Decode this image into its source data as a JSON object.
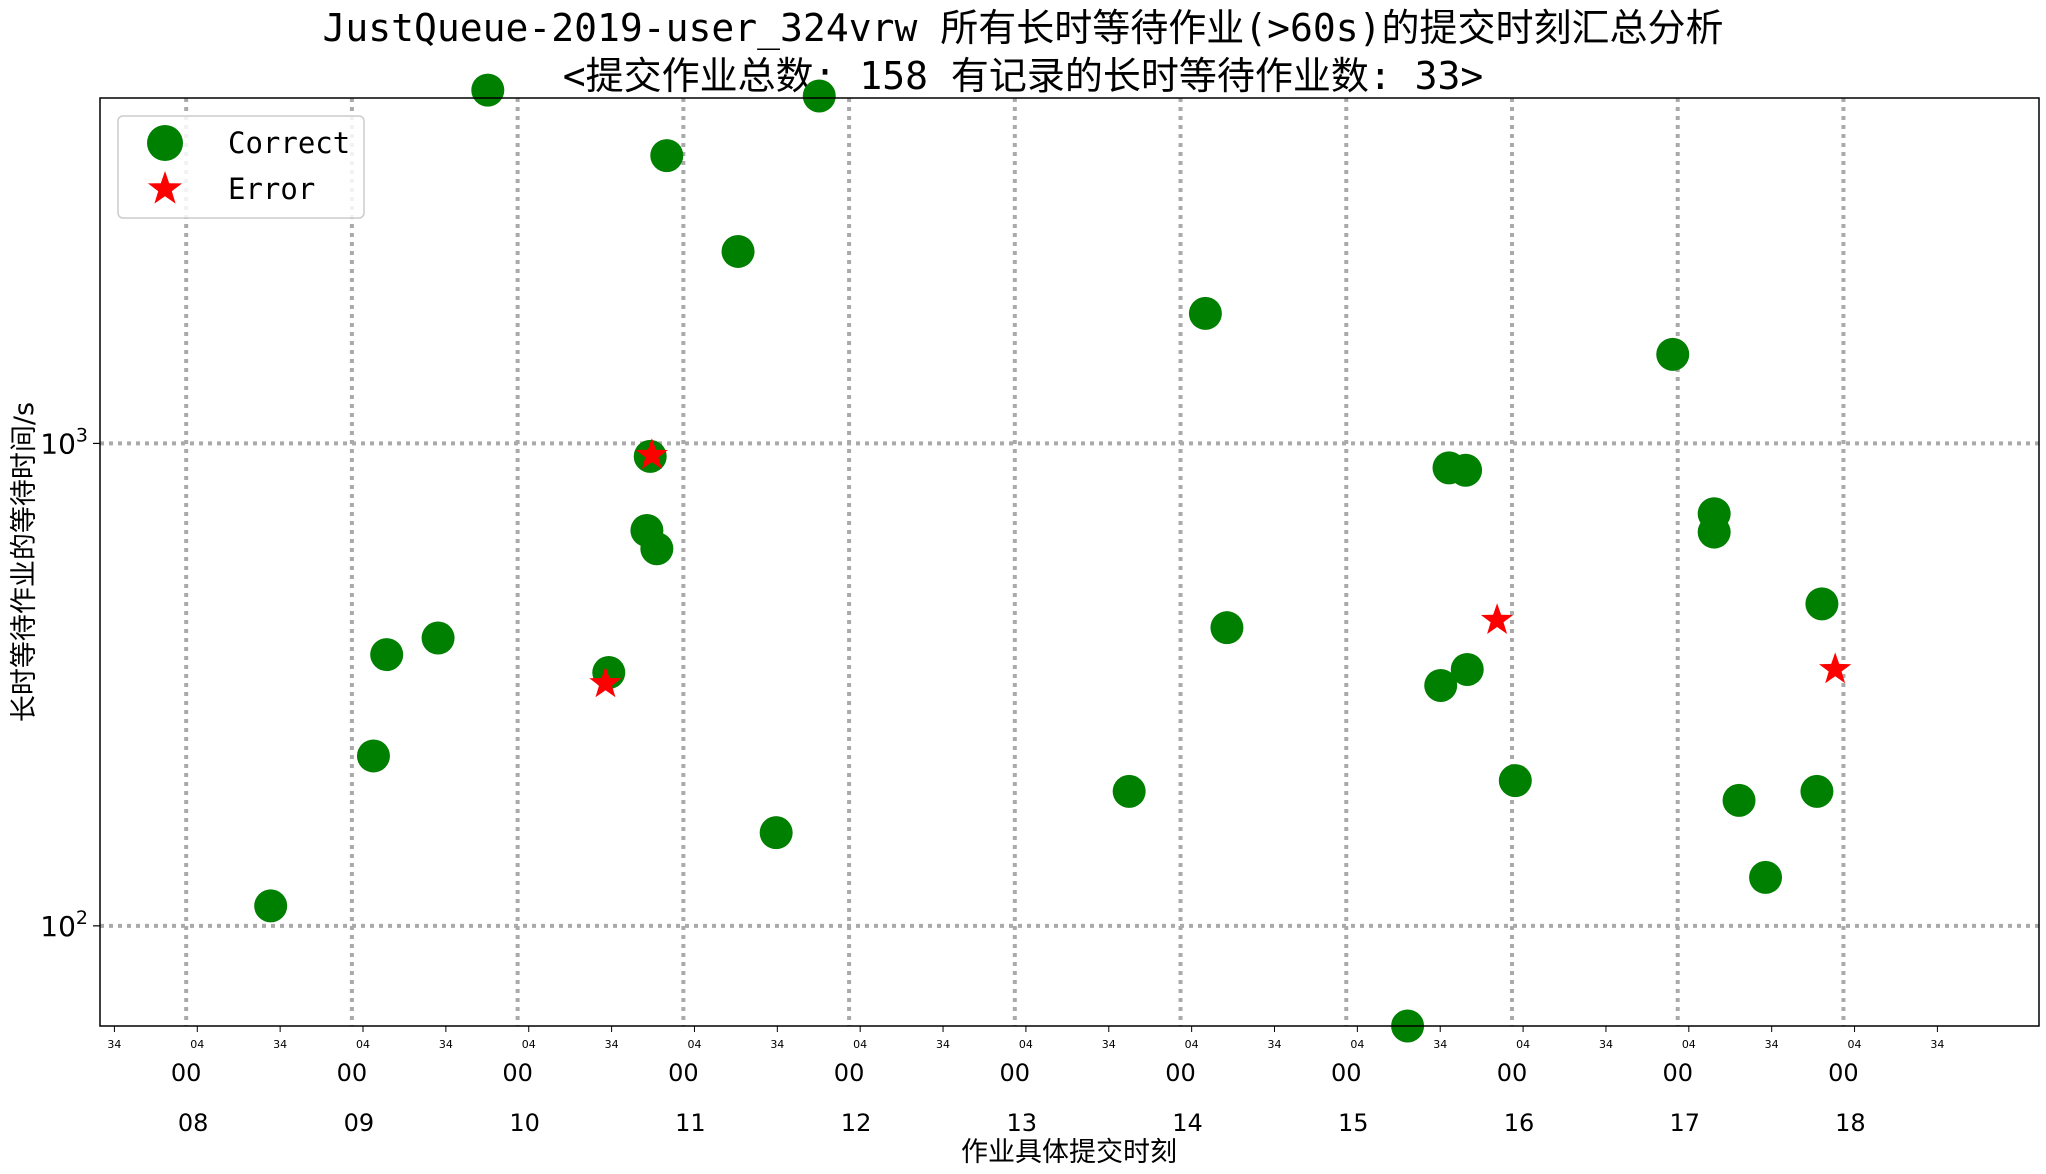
{
  "chart_data": {
    "type": "scatter",
    "title": "JustQueue-2019-user_324vrw 所有长时等待作业(>60s)的提交时刻汇总分析",
    "subtitle": "<提交作业总数: 158  有记录的长时等待作业数: 33>",
    "xlabel": "作业具体提交时刻",
    "ylabel": "长时等待作业的等待时间/s",
    "y_scale": "log",
    "ylim": [
      62,
      5200
    ],
    "y_ticks": [
      {
        "value": 100,
        "base": "10",
        "exp": "2"
      },
      {
        "value": 1000,
        "base": "10",
        "exp": "3"
      }
    ],
    "x_range_hours": [
      7.48,
      19.18
    ],
    "x_major_ticks": [
      {
        "hour": 8,
        "hh": "08",
        "mm": "00"
      },
      {
        "hour": 9,
        "hh": "09",
        "mm": "00"
      },
      {
        "hour": 10,
        "hh": "10",
        "mm": "00"
      },
      {
        "hour": 11,
        "hh": "11",
        "mm": "00"
      },
      {
        "hour": 12,
        "hh": "12",
        "mm": "00"
      },
      {
        "hour": 13,
        "hh": "13",
        "mm": "00"
      },
      {
        "hour": 14,
        "hh": "14",
        "mm": "00"
      },
      {
        "hour": 15,
        "hh": "15",
        "mm": "00"
      },
      {
        "hour": 16,
        "hh": "16",
        "mm": "00"
      },
      {
        "hour": 17,
        "hh": "17",
        "mm": "00"
      },
      {
        "hour": 18,
        "hh": "18",
        "mm": "00"
      }
    ],
    "x_minor_ticks": [
      {
        "hour": 7.567,
        "label": "34"
      },
      {
        "hour": 8.067,
        "label": "04"
      },
      {
        "hour": 8.567,
        "label": "34"
      },
      {
        "hour": 9.067,
        "label": "04"
      },
      {
        "hour": 9.567,
        "label": "34"
      },
      {
        "hour": 10.067,
        "label": "04"
      },
      {
        "hour": 10.567,
        "label": "34"
      },
      {
        "hour": 11.067,
        "label": "04"
      },
      {
        "hour": 11.567,
        "label": "34"
      },
      {
        "hour": 12.067,
        "label": "04"
      },
      {
        "hour": 12.567,
        "label": "34"
      },
      {
        "hour": 13.067,
        "label": "04"
      },
      {
        "hour": 13.567,
        "label": "34"
      },
      {
        "hour": 14.067,
        "label": "04"
      },
      {
        "hour": 14.567,
        "label": "34"
      },
      {
        "hour": 15.067,
        "label": "04"
      },
      {
        "hour": 15.567,
        "label": "34"
      },
      {
        "hour": 16.067,
        "label": "04"
      },
      {
        "hour": 16.567,
        "label": "34"
      },
      {
        "hour": 17.067,
        "label": "04"
      },
      {
        "hour": 17.567,
        "label": "34"
      },
      {
        "hour": 18.067,
        "label": "04"
      },
      {
        "hour": 18.567,
        "label": "34"
      }
    ],
    "grid": true,
    "legend_position": "upper-left",
    "series": [
      {
        "name": "Correct",
        "marker": "circle",
        "color": "#008000",
        "points": [
          {
            "x": 8.51,
            "y": 110
          },
          {
            "x": 9.13,
            "y": 225
          },
          {
            "x": 9.21,
            "y": 365
          },
          {
            "x": 9.52,
            "y": 395
          },
          {
            "x": 9.82,
            "y": 5400
          },
          {
            "x": 10.55,
            "y": 335
          },
          {
            "x": 10.78,
            "y": 660
          },
          {
            "x": 10.8,
            "y": 940
          },
          {
            "x": 10.84,
            "y": 605
          },
          {
            "x": 10.9,
            "y": 3950
          },
          {
            "x": 11.33,
            "y": 2500
          },
          {
            "x": 11.56,
            "y": 156
          },
          {
            "x": 11.82,
            "y": 5250
          },
          {
            "x": 13.69,
            "y": 190
          },
          {
            "x": 14.15,
            "y": 1860
          },
          {
            "x": 14.28,
            "y": 415
          },
          {
            "x": 15.37,
            "y": 62
          },
          {
            "x": 15.57,
            "y": 315
          },
          {
            "x": 15.62,
            "y": 890
          },
          {
            "x": 15.72,
            "y": 880
          },
          {
            "x": 15.73,
            "y": 340
          },
          {
            "x": 16.02,
            "y": 200
          },
          {
            "x": 16.97,
            "y": 1530
          },
          {
            "x": 17.22,
            "y": 715
          },
          {
            "x": 17.22,
            "y": 655
          },
          {
            "x": 17.37,
            "y": 182
          },
          {
            "x": 17.53,
            "y": 126
          },
          {
            "x": 17.84,
            "y": 190
          },
          {
            "x": 17.87,
            "y": 465
          }
        ]
      },
      {
        "name": "Error",
        "marker": "star",
        "color": "#ff0000",
        "points": [
          {
            "x": 10.53,
            "y": 318
          },
          {
            "x": 10.81,
            "y": 945
          },
          {
            "x": 15.91,
            "y": 430
          },
          {
            "x": 17.95,
            "y": 340
          }
        ]
      }
    ]
  }
}
